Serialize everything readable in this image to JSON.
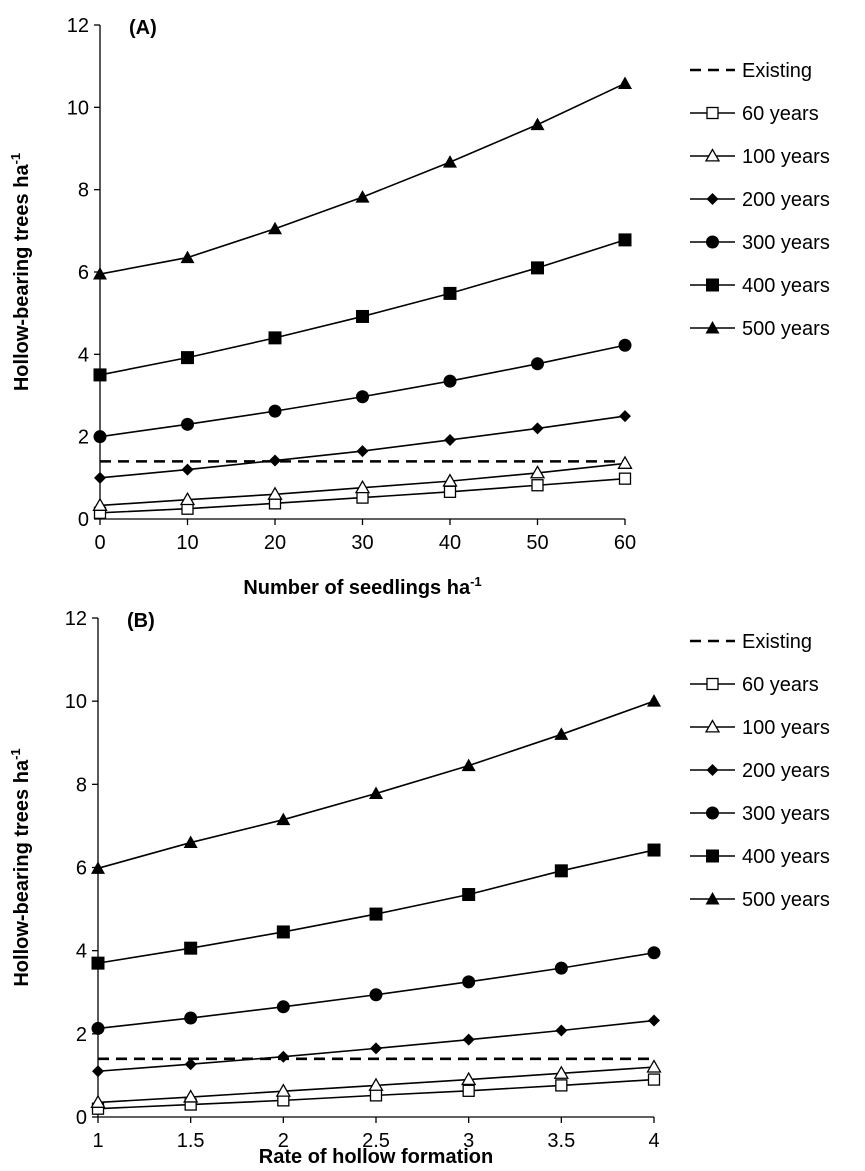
{
  "chart_data": [
    {
      "type": "line",
      "panel_label": "(A)",
      "xlabel": "Number of seedlings ha",
      "xlabel_sup": "-1",
      "ylabel": "Hollow-bearing trees ha",
      "ylabel_sup": "-1",
      "x": [
        0,
        10,
        20,
        30,
        40,
        50,
        60
      ],
      "x_tick_labels": [
        "0",
        "10",
        "20",
        "30",
        "40",
        "50",
        "60"
      ],
      "xlim": [
        0,
        60
      ],
      "y_ticks": [
        0,
        2,
        4,
        6,
        8,
        10,
        12
      ],
      "y_tick_labels": [
        "0",
        "2",
        "4",
        "6",
        "8",
        "10",
        "12"
      ],
      "ylim": [
        0,
        12
      ],
      "grid": false,
      "legend_position": "right",
      "series": [
        {
          "name": "Existing",
          "style": "dashed",
          "marker": "none",
          "values": [
            1.4,
            1.4,
            1.4,
            1.4,
            1.4,
            1.4,
            1.4
          ]
        },
        {
          "name": "60 years",
          "style": "solid",
          "marker": "square-open",
          "values": [
            0.15,
            0.25,
            0.38,
            0.52,
            0.66,
            0.82,
            0.98
          ]
        },
        {
          "name": "100 years",
          "style": "solid",
          "marker": "triangle-open",
          "values": [
            0.33,
            0.47,
            0.6,
            0.76,
            0.92,
            1.12,
            1.35
          ]
        },
        {
          "name": "200 years",
          "style": "solid",
          "marker": "diamond-filled",
          "values": [
            1.0,
            1.2,
            1.42,
            1.65,
            1.92,
            2.2,
            2.5
          ]
        },
        {
          "name": "300 years",
          "style": "solid",
          "marker": "circle-filled",
          "values": [
            2.0,
            2.3,
            2.62,
            2.97,
            3.35,
            3.77,
            4.22
          ]
        },
        {
          "name": "400 years",
          "style": "solid",
          "marker": "square-filled",
          "values": [
            3.5,
            3.92,
            4.4,
            4.92,
            5.48,
            6.1,
            6.78
          ]
        },
        {
          "name": "500 years",
          "style": "solid",
          "marker": "triangle-filled",
          "values": [
            5.95,
            6.35,
            7.05,
            7.82,
            8.67,
            9.58,
            10.58
          ]
        }
      ]
    },
    {
      "type": "line",
      "panel_label": "(B)",
      "xlabel": "Rate of hollow formation",
      "xlabel_sup": "",
      "ylabel": "Hollow-bearing trees ha",
      "ylabel_sup": "-1",
      "x": [
        1,
        1.5,
        2,
        2.5,
        3,
        3.5,
        4
      ],
      "x_tick_labels": [
        "1",
        "1.5",
        "2",
        "2.5",
        "3",
        "3.5",
        "4"
      ],
      "xlim": [
        1,
        4
      ],
      "y_ticks": [
        0,
        2,
        4,
        6,
        8,
        10,
        12
      ],
      "y_tick_labels": [
        "0",
        "2",
        "4",
        "6",
        "8",
        "10",
        "12"
      ],
      "ylim": [
        0,
        12
      ],
      "grid": false,
      "legend_position": "right",
      "series": [
        {
          "name": "Existing",
          "style": "dashed",
          "marker": "none",
          "values": [
            1.4,
            1.4,
            1.4,
            1.4,
            1.4,
            1.4,
            1.4
          ]
        },
        {
          "name": "60 years",
          "style": "solid",
          "marker": "square-open",
          "values": [
            0.2,
            0.3,
            0.4,
            0.52,
            0.63,
            0.76,
            0.9
          ]
        },
        {
          "name": "100 years",
          "style": "solid",
          "marker": "triangle-open",
          "values": [
            0.35,
            0.48,
            0.62,
            0.76,
            0.9,
            1.05,
            1.2
          ]
        },
        {
          "name": "200 years",
          "style": "solid",
          "marker": "diamond-filled",
          "values": [
            1.1,
            1.27,
            1.45,
            1.65,
            1.86,
            2.08,
            2.32
          ]
        },
        {
          "name": "300 years",
          "style": "solid",
          "marker": "circle-filled",
          "values": [
            2.13,
            2.38,
            2.65,
            2.94,
            3.25,
            3.58,
            3.95
          ]
        },
        {
          "name": "400 years",
          "style": "solid",
          "marker": "square-filled",
          "values": [
            3.7,
            4.06,
            4.45,
            4.88,
            5.35,
            5.92,
            6.42
          ]
        },
        {
          "name": "500 years",
          "style": "solid",
          "marker": "triangle-filled",
          "values": [
            5.98,
            6.6,
            7.15,
            7.78,
            8.45,
            9.2,
            10.0
          ]
        }
      ]
    }
  ]
}
